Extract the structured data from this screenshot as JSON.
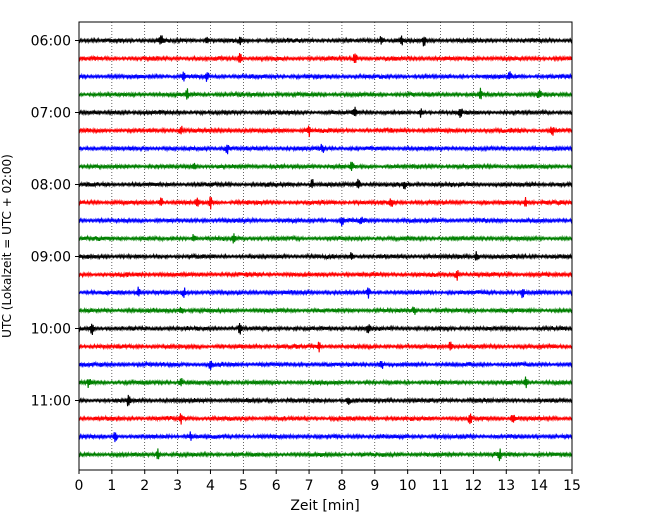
{
  "chart_data": {
    "type": "line",
    "title": "",
    "xlabel": "Zeit  [min]",
    "ylabel": "UTC (Lokalzeit = UTC + 02:00)",
    "xlim": [
      0,
      15
    ],
    "x_ticks": [
      0,
      1,
      2,
      3,
      4,
      5,
      6,
      7,
      8,
      9,
      10,
      11,
      12,
      13,
      14,
      15
    ],
    "x_tick_labels": [
      "0",
      "1",
      "2",
      "3",
      "4",
      "5",
      "6",
      "7",
      "8",
      "9",
      "10",
      "11",
      "12",
      "13",
      "14",
      "15"
    ],
    "y_tick_labels": [
      "06:00",
      "07:00",
      "08:00",
      "09:00",
      "10:00",
      "11:00"
    ],
    "traces_per_hour": 4,
    "minutes_per_trace": 15,
    "grid": "vertical dotted at each minute",
    "colors": [
      "#000000",
      "#ff0000",
      "#0000ff",
      "#008000"
    ],
    "traces": [
      {
        "start": "06:00",
        "events": [
          2.5,
          3.9,
          4.9,
          9.2,
          9.8,
          10.5
        ]
      },
      {
        "start": "06:15",
        "events": [
          4.9,
          8.4
        ]
      },
      {
        "start": "06:30",
        "events": [
          3.2,
          3.9,
          13.1
        ]
      },
      {
        "start": "06:45",
        "events": [
          3.3,
          12.2,
          14.0
        ]
      },
      {
        "start": "07:00",
        "events": [
          8.4,
          10.4,
          11.6
        ]
      },
      {
        "start": "07:15",
        "events": [
          3.1,
          7.0,
          14.4
        ]
      },
      {
        "start": "07:30",
        "events": [
          4.5,
          7.4
        ]
      },
      {
        "start": "07:45",
        "events": [
          3.5,
          8.3
        ]
      },
      {
        "start": "08:00",
        "events": [
          7.1,
          8.5,
          9.9
        ]
      },
      {
        "start": "08:15",
        "events": [
          2.5,
          3.6,
          4.0,
          9.5,
          13.6
        ]
      },
      {
        "start": "08:30",
        "events": [
          8.0,
          8.6
        ]
      },
      {
        "start": "08:45",
        "events": [
          3.5,
          4.7
        ]
      },
      {
        "start": "09:00",
        "events": [
          8.3,
          12.1
        ]
      },
      {
        "start": "09:15",
        "events": [
          11.5
        ]
      },
      {
        "start": "09:30",
        "events": [
          1.8,
          3.2,
          8.8,
          13.5
        ]
      },
      {
        "start": "09:45",
        "events": [
          3.1,
          10.2
        ]
      },
      {
        "start": "10:00",
        "events": [
          0.4,
          4.9,
          8.8
        ]
      },
      {
        "start": "10:15",
        "events": [
          7.3,
          11.3
        ]
      },
      {
        "start": "10:30",
        "events": [
          4.0,
          9.2
        ]
      },
      {
        "start": "10:45",
        "events": [
          0.3,
          3.1,
          13.6
        ]
      },
      {
        "start": "11:00",
        "events": [
          1.5,
          8.2
        ]
      },
      {
        "start": "11:15",
        "events": [
          3.1,
          11.9,
          13.2
        ]
      },
      {
        "start": "11:30",
        "events": [
          1.1,
          3.4
        ]
      },
      {
        "start": "11:45",
        "events": [
          2.4,
          12.8
        ]
      }
    ]
  }
}
